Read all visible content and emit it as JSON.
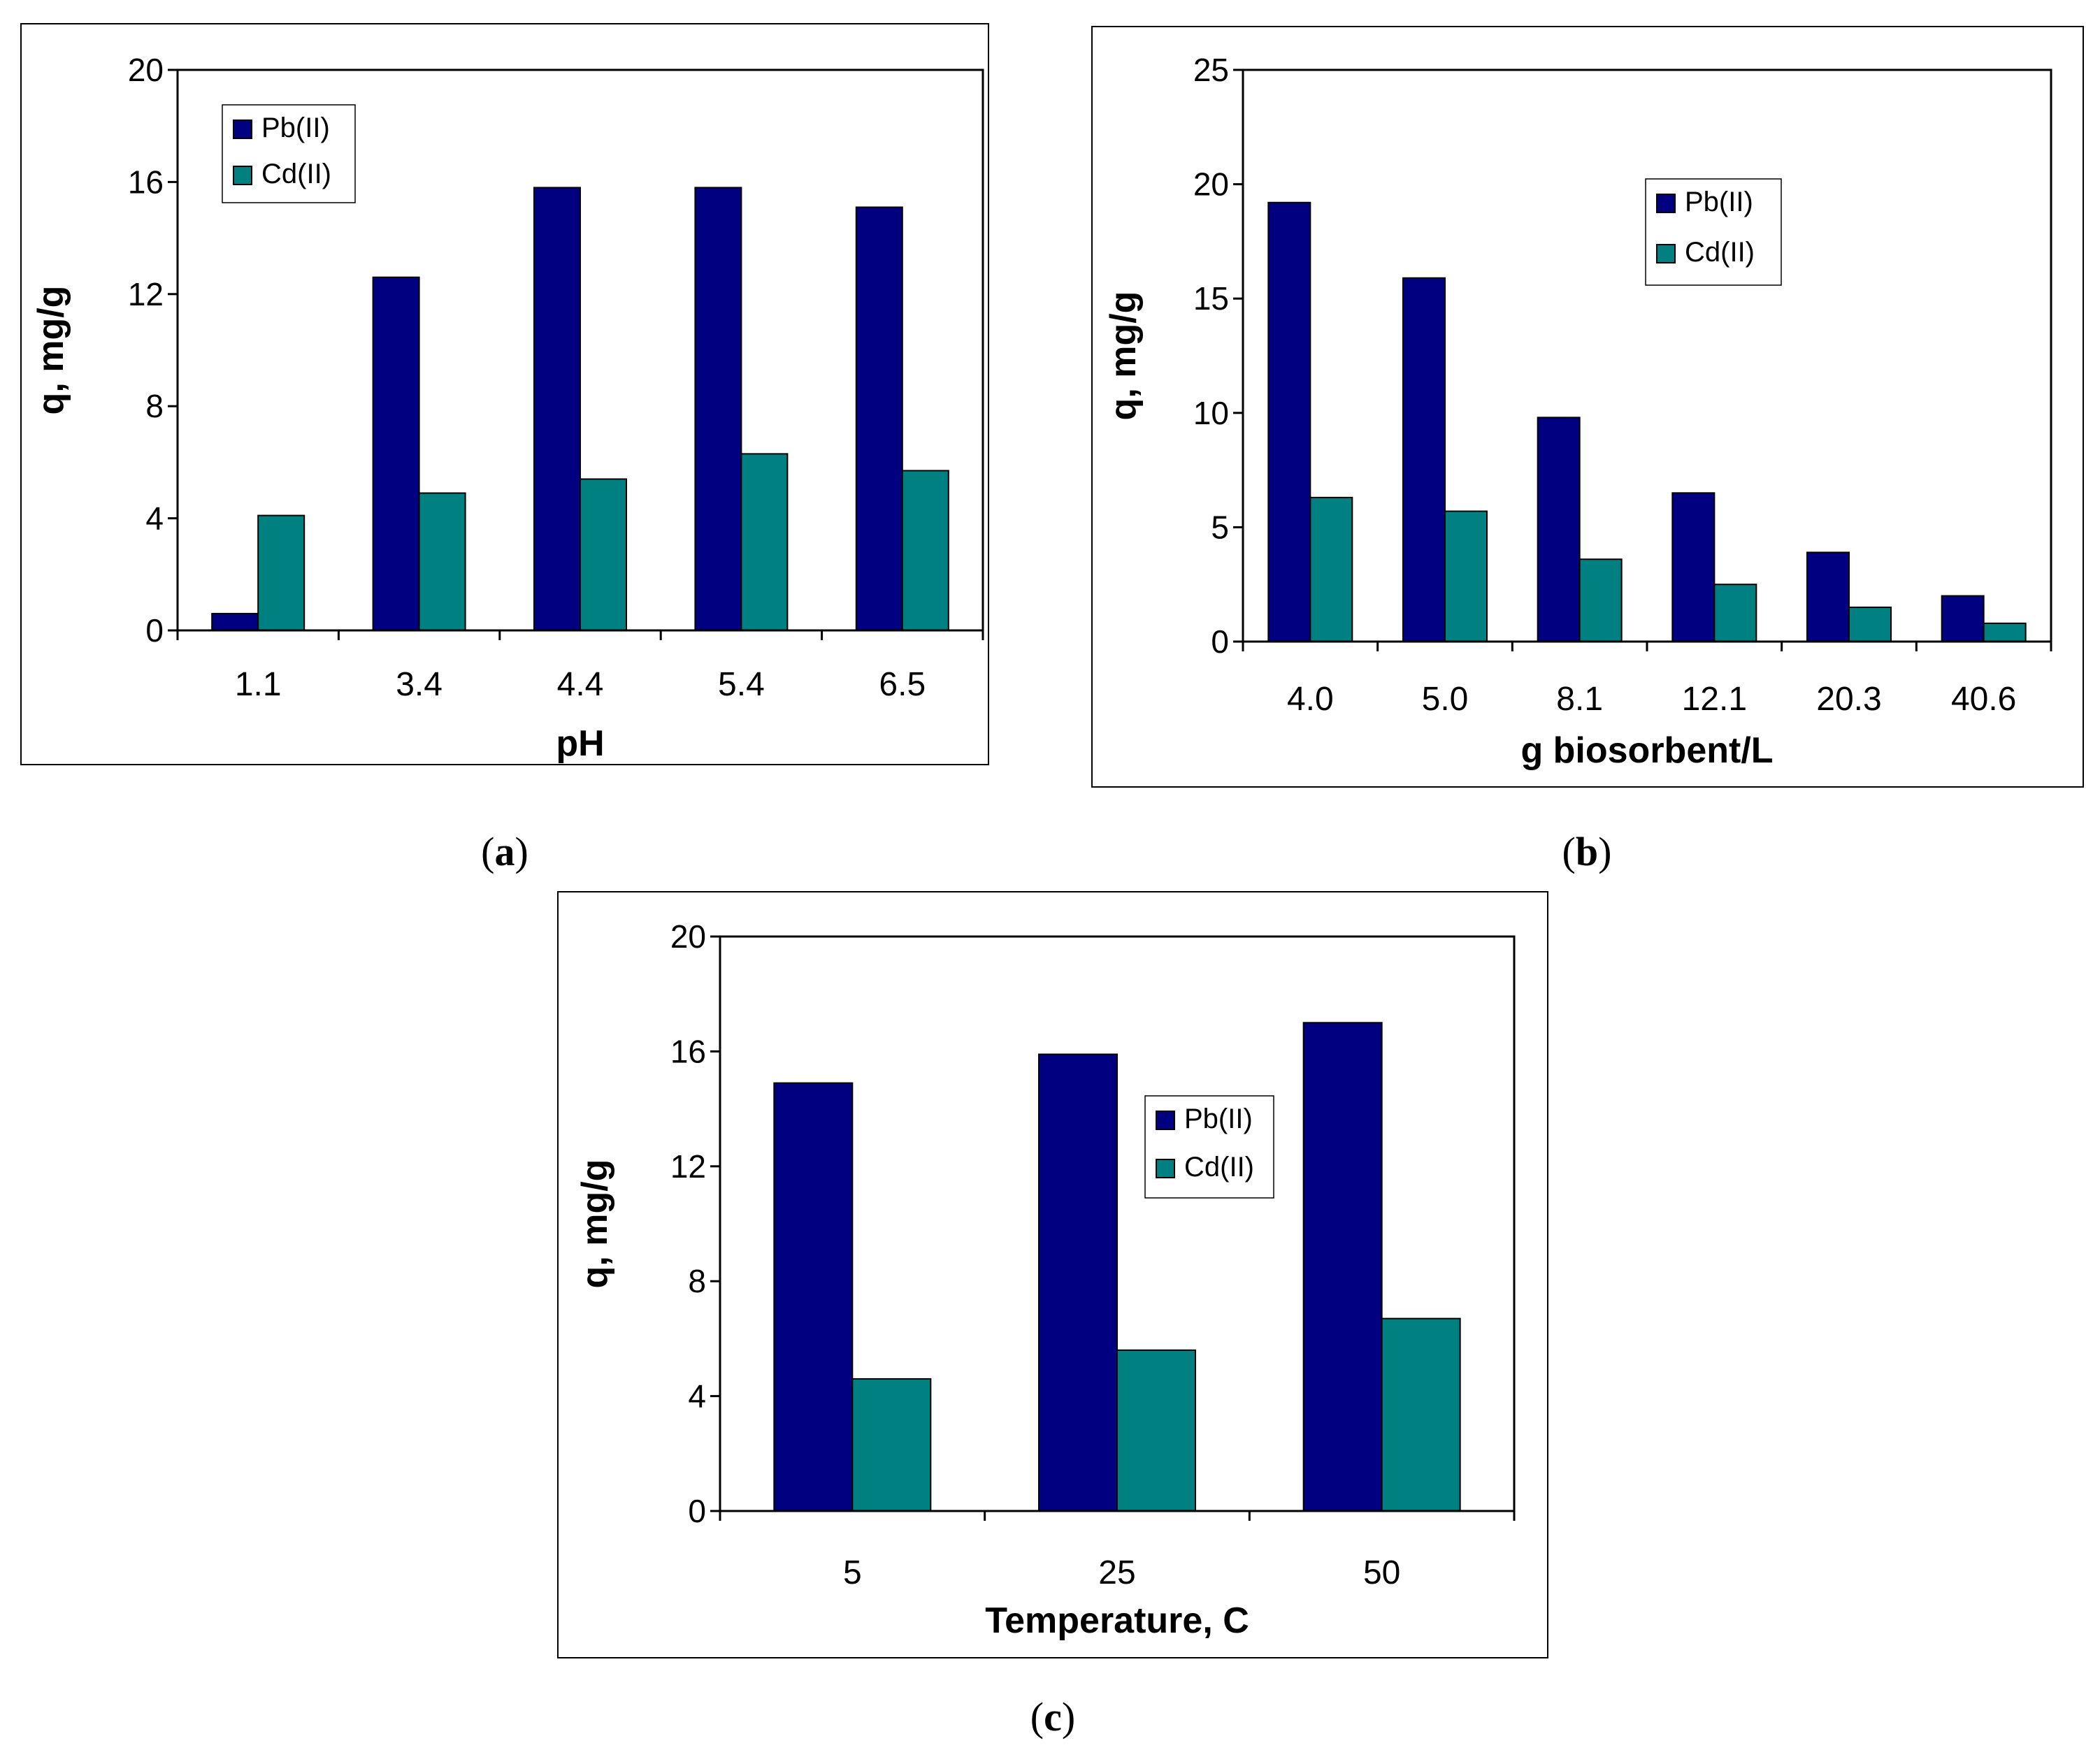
{
  "colors": {
    "pb": "#000080",
    "cd": "#008080",
    "frame": "#000000",
    "background": "#ffffff"
  },
  "chart_data": [
    {
      "type": "bar",
      "caption": "(a)",
      "categories": [
        "1.1",
        "3.4",
        "4.4",
        "5.4",
        "6.5"
      ],
      "series": [
        {
          "name": "Pb(II)",
          "values": [
            0.6,
            12.6,
            15.8,
            15.8,
            15.1
          ]
        },
        {
          "name": "Cd(II)",
          "values": [
            4.1,
            4.9,
            5.4,
            6.3,
            5.7
          ]
        }
      ],
      "xlabel": "pH",
      "ylabel": "q, mg/g",
      "ylim": [
        0,
        20
      ],
      "yticks": [
        0,
        4,
        8,
        12,
        16,
        20
      ],
      "grid": false,
      "legend_position": "top-left"
    },
    {
      "type": "bar",
      "caption": "(b)",
      "categories": [
        "4.0",
        "5.0",
        "8.1",
        "12.1",
        "20.3",
        "40.6"
      ],
      "series": [
        {
          "name": "Pb(II)",
          "values": [
            19.2,
            15.9,
            9.8,
            6.5,
            3.9,
            2.0
          ]
        },
        {
          "name": "Cd(II)",
          "values": [
            6.3,
            5.7,
            3.6,
            2.5,
            1.5,
            0.8
          ]
        }
      ],
      "xlabel": "g biosorbent/L",
      "ylabel": "q, mg/g",
      "ylim": [
        0,
        25
      ],
      "yticks": [
        0,
        5,
        10,
        15,
        20,
        25
      ],
      "grid": false,
      "legend_position": "top-center"
    },
    {
      "type": "bar",
      "caption": "(c)",
      "categories": [
        "5",
        "25",
        "50"
      ],
      "series": [
        {
          "name": "Pb(II)",
          "values": [
            14.9,
            15.9,
            17.0
          ]
        },
        {
          "name": "Cd(II)",
          "values": [
            4.6,
            5.6,
            6.7
          ]
        }
      ],
      "xlabel": "Temperature, C",
      "ylabel": "q, mg/g",
      "ylim": [
        0,
        20
      ],
      "yticks": [
        0,
        4,
        8,
        12,
        16,
        20
      ],
      "grid": false,
      "legend_position": "right"
    }
  ]
}
